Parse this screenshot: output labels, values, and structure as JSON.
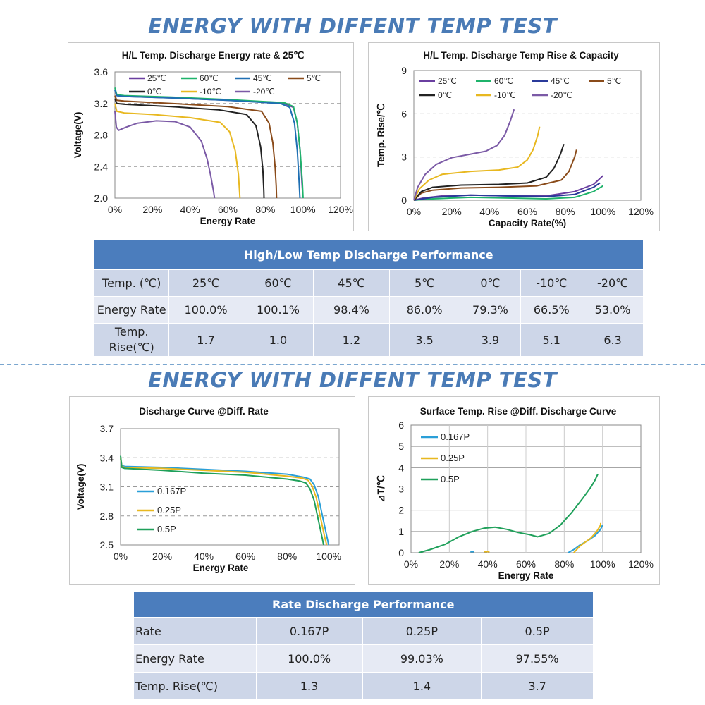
{
  "heading_top": "ENERGY WITH DIFFENT TEMP TEST",
  "heading_bottom": "ENERGY WITH DIFFENT TEMP TEST",
  "table1": {
    "title": "High/Low Temp  Discharge Performance",
    "rows": [
      [
        "Temp. (℃)",
        "25℃",
        "60℃",
        "45℃",
        "5℃",
        "0℃",
        "-10℃",
        "-20℃"
      ],
      [
        "Energy Rate",
        "100.0%",
        "100.1%",
        "98.4%",
        "86.0%",
        "79.3%",
        "66.5%",
        "53.0%"
      ],
      [
        "Temp. Rise(℃)",
        "1.7",
        "1.0",
        "1.2",
        "3.5",
        "3.9",
        "5.1",
        "6.3"
      ]
    ]
  },
  "table2": {
    "title": "Rate Discharge Performance",
    "rows": [
      [
        "Rate",
        "0.167P",
        "0.25P",
        "0.5P"
      ],
      [
        "Energy Rate",
        "100.0%",
        "99.03%",
        "97.55%"
      ],
      [
        "Temp. Rise(℃)",
        "1.3",
        "1.4",
        "3.7"
      ]
    ]
  },
  "chart_data": [
    {
      "type": "line",
      "title": "H/L Temp. Discharge Energy rate & 25℃",
      "xlabel": "Energy Rate",
      "ylabel": "Voltage(V)",
      "xlim": [
        0,
        120
      ],
      "ylim": [
        2.0,
        3.6
      ],
      "x_ticks": [
        "0%",
        "20%",
        "40%",
        "60%",
        "80%",
        "100%",
        "120%"
      ],
      "y_ticks": [
        "2.0",
        "2.4",
        "2.8",
        "3.2",
        "3.6"
      ],
      "grid": "horizontal-dashed",
      "legend": "top-left",
      "series": [
        {
          "name": "25℃",
          "color": "#6a3fa0",
          "x": [
            0,
            1,
            5,
            30,
            60,
            90,
            95,
            97,
            98.5,
            99.5,
            100
          ],
          "y": [
            3.38,
            3.3,
            3.29,
            3.27,
            3.24,
            3.2,
            3.15,
            2.95,
            2.6,
            2.2,
            2.0
          ]
        },
        {
          "name": "60℃",
          "color": "#1fb36b",
          "x": [
            0,
            1,
            5,
            30,
            60,
            90,
            95,
            97,
            98.5,
            99.7,
            100.1
          ],
          "y": [
            3.4,
            3.31,
            3.3,
            3.28,
            3.25,
            3.21,
            3.16,
            2.95,
            2.6,
            2.2,
            2.0
          ]
        },
        {
          "name": "45℃",
          "color": "#1f6fb3",
          "x": [
            0,
            1,
            5,
            30,
            60,
            88,
            93,
            95.5,
            97,
            98,
            98.4
          ],
          "y": [
            3.37,
            3.3,
            3.29,
            3.27,
            3.24,
            3.2,
            3.15,
            2.95,
            2.6,
            2.2,
            2.0
          ]
        },
        {
          "name": "5℃",
          "color": "#8a4b1a",
          "x": [
            0,
            1,
            5,
            30,
            60,
            78,
            82,
            84,
            85.2,
            85.8,
            86.0
          ],
          "y": [
            3.3,
            3.24,
            3.23,
            3.2,
            3.16,
            3.1,
            2.95,
            2.7,
            2.4,
            2.15,
            2.0
          ]
        },
        {
          "name": "0℃",
          "color": "#222222",
          "x": [
            0,
            1,
            5,
            30,
            55,
            70,
            75,
            77.5,
            78.7,
            79.2,
            79.3
          ],
          "y": [
            3.26,
            3.2,
            3.19,
            3.16,
            3.12,
            3.06,
            2.92,
            2.65,
            2.35,
            2.1,
            2.0
          ]
        },
        {
          "name": "-10℃",
          "color": "#e8b820",
          "x": [
            0,
            1,
            5,
            20,
            40,
            56,
            61,
            64,
            65.7,
            66.3,
            66.5
          ],
          "y": [
            3.2,
            3.1,
            3.08,
            3.06,
            3.02,
            2.96,
            2.84,
            2.6,
            2.3,
            2.08,
            2.0
          ]
        },
        {
          "name": "-20℃",
          "color": "#7b5aa6",
          "x": [
            0,
            0.8,
            2,
            6,
            12,
            22,
            32,
            40,
            46,
            49,
            51,
            52.5,
            53.0
          ],
          "y": [
            3.1,
            2.9,
            2.86,
            2.9,
            2.95,
            2.98,
            2.97,
            2.9,
            2.72,
            2.5,
            2.28,
            2.08,
            2.0
          ]
        }
      ]
    },
    {
      "type": "line",
      "title": "H/L Temp. Discharge Temp Rise & Capacity",
      "xlabel": "Capacity Rate(%)",
      "ylabel": "Temp. Rise/℃",
      "xlim": [
        0,
        120
      ],
      "ylim": [
        0,
        9
      ],
      "x_ticks": [
        "0%",
        "20%",
        "40%",
        "60%",
        "80%",
        "100%",
        "120%"
      ],
      "y_ticks": [
        "0",
        "3",
        "6",
        "9"
      ],
      "grid": "horizontal-dashed",
      "legend": "top-left",
      "series": [
        {
          "name": "25℃",
          "color": "#6a3fa0",
          "x": [
            0,
            5,
            15,
            30,
            50,
            70,
            85,
            95,
            100
          ],
          "y": [
            0,
            0.15,
            0.3,
            0.35,
            0.3,
            0.3,
            0.6,
            1.1,
            1.7
          ]
        },
        {
          "name": "60℃",
          "color": "#1fb36b",
          "x": [
            0,
            10,
            30,
            50,
            70,
            85,
            95,
            100
          ],
          "y": [
            0,
            0.1,
            0.2,
            0.15,
            0.1,
            0.2,
            0.6,
            1.0
          ]
        },
        {
          "name": "45℃",
          "color": "#2a3a9a",
          "x": [
            0,
            10,
            30,
            50,
            70,
            85,
            95,
            98.4
          ],
          "y": [
            0,
            0.2,
            0.35,
            0.3,
            0.25,
            0.4,
            0.9,
            1.2
          ]
        },
        {
          "name": "5℃",
          "color": "#8a4b1a",
          "x": [
            0,
            4,
            10,
            25,
            45,
            65,
            78,
            82,
            85,
            86
          ],
          "y": [
            0,
            0.5,
            0.7,
            0.85,
            0.9,
            1.0,
            1.4,
            2.0,
            3.0,
            3.5
          ]
        },
        {
          "name": "0℃",
          "color": "#222222",
          "x": [
            0,
            4,
            10,
            25,
            45,
            60,
            70,
            74,
            77.5,
            79.3
          ],
          "y": [
            0,
            0.6,
            0.9,
            1.05,
            1.1,
            1.2,
            1.6,
            2.2,
            3.2,
            3.9
          ]
        },
        {
          "name": "-10℃",
          "color": "#e8b820",
          "x": [
            0,
            3,
            8,
            15,
            30,
            45,
            55,
            60,
            63,
            65.5,
            66.5
          ],
          "y": [
            0,
            0.8,
            1.4,
            1.8,
            2.0,
            2.1,
            2.3,
            2.8,
            3.5,
            4.5,
            5.1
          ]
        },
        {
          "name": "-20℃",
          "color": "#7b5aa6",
          "x": [
            0,
            2,
            6,
            12,
            20,
            30,
            38,
            44,
            48,
            51,
            53
          ],
          "y": [
            0,
            0.9,
            1.8,
            2.5,
            2.95,
            3.2,
            3.4,
            3.8,
            4.5,
            5.5,
            6.3
          ]
        }
      ]
    },
    {
      "type": "line",
      "title": "Discharge Curve @Diff. Rate",
      "xlabel": "Energy Rate",
      "ylabel": "Voltage(V)",
      "xlim": [
        0,
        105
      ],
      "ylim": [
        2.5,
        3.7
      ],
      "x_ticks": [
        "0%",
        "20%",
        "40%",
        "60%",
        "80%",
        "100%"
      ],
      "y_ticks": [
        "2.5",
        "2.8",
        "3.1",
        "3.4",
        "3.7"
      ],
      "grid": "horizontal-dashed",
      "legend": "left",
      "series": [
        {
          "name": "0.167P",
          "color": "#2a9fd8",
          "x": [
            0,
            0.6,
            2,
            20,
            40,
            60,
            80,
            88,
            91,
            93,
            95,
            97,
            99,
            100
          ],
          "y": [
            3.39,
            3.32,
            3.31,
            3.3,
            3.28,
            3.26,
            3.23,
            3.2,
            3.18,
            3.12,
            3.0,
            2.8,
            2.6,
            2.5
          ]
        },
        {
          "name": "0.25P",
          "color": "#e8b820",
          "x": [
            0,
            0.6,
            2,
            20,
            40,
            60,
            80,
            87,
            90,
            92,
            94,
            96,
            98,
            99.03
          ],
          "y": [
            3.4,
            3.31,
            3.3,
            3.29,
            3.27,
            3.25,
            3.21,
            3.19,
            3.17,
            3.11,
            2.99,
            2.79,
            2.59,
            2.5
          ]
        },
        {
          "name": "0.5P",
          "color": "#1fa05a",
          "x": [
            0,
            0.6,
            2,
            20,
            40,
            60,
            80,
            86,
            89,
            91,
            93,
            95,
            97,
            97.55
          ],
          "y": [
            3.42,
            3.3,
            3.29,
            3.27,
            3.24,
            3.22,
            3.18,
            3.16,
            3.14,
            3.08,
            2.96,
            2.76,
            2.56,
            2.5
          ]
        }
      ]
    },
    {
      "type": "line",
      "title": "Surface Temp. Rise @Diff. Discharge Curve",
      "xlabel": "Energy Rate",
      "ylabel": "⊿T/℃",
      "xlim": [
        0,
        120
      ],
      "ylim": [
        0,
        6
      ],
      "x_ticks": [
        "0%",
        "20%",
        "40%",
        "60%",
        "80%",
        "100%",
        "120%"
      ],
      "y_ticks": [
        "0",
        "1",
        "2",
        "3",
        "4",
        "5",
        "6"
      ],
      "grid": "both",
      "legend": "top-left",
      "series": [
        {
          "name": "0.167P",
          "color": "#2a9fd8",
          "x": [
            31,
            31.5,
            33
          ],
          "y": [
            0.05,
            0.05,
            0.05
          ],
          "x2": [
            82,
            85,
            88,
            92,
            96,
            99,
            100
          ],
          "y2": [
            0,
            0.15,
            0.35,
            0.55,
            0.8,
            1.1,
            1.3
          ]
        },
        {
          "name": "0.25P",
          "color": "#e8b820",
          "x": [
            38,
            40,
            41
          ],
          "y": [
            0.05,
            0.05,
            0.05
          ],
          "x2": [
            85,
            88,
            91,
            94,
            97,
            99,
            99.03
          ],
          "y2": [
            0,
            0.3,
            0.5,
            0.7,
            1.0,
            1.3,
            1.4
          ]
        },
        {
          "name": "0.5P",
          "color": "#1fa05a",
          "x": [
            4,
            10,
            18,
            25,
            32,
            38,
            44,
            50,
            56,
            62,
            66,
            72,
            78,
            84,
            90,
            94,
            96,
            97.55
          ],
          "y": [
            0,
            0.15,
            0.4,
            0.75,
            1.0,
            1.15,
            1.2,
            1.1,
            0.95,
            0.85,
            0.75,
            0.9,
            1.3,
            1.9,
            2.6,
            3.1,
            3.4,
            3.7
          ]
        }
      ]
    }
  ]
}
